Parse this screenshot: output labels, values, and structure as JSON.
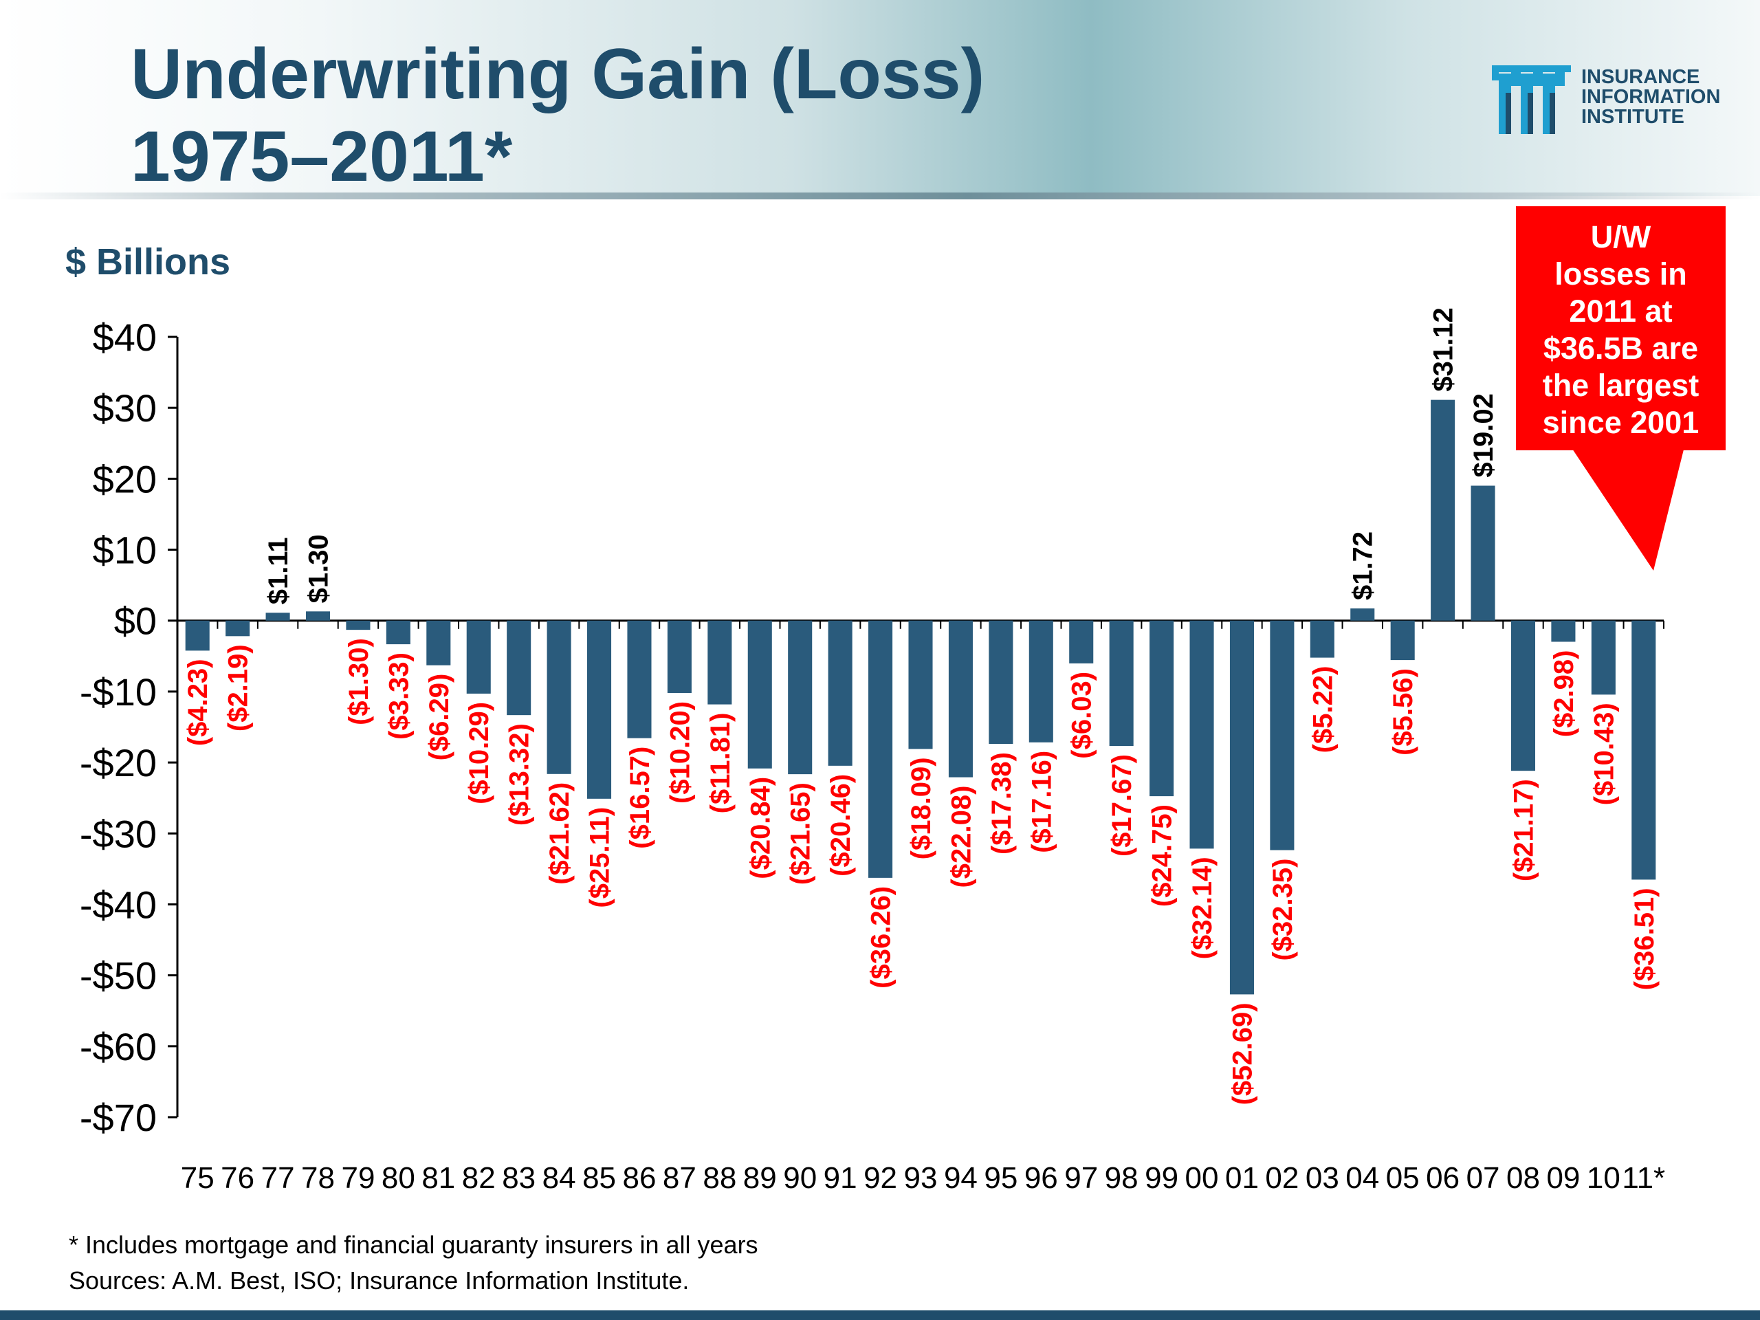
{
  "slide": {
    "title_line1": "Underwriting Gain (Loss)",
    "title_line2": "1975–2011*",
    "logo_lines": [
      "INSURANCE",
      "INFORMATION",
      "INSTITUTE"
    ],
    "unit_label": "$ Billions",
    "callout_lines": [
      "U/W",
      "losses in",
      "2011 at",
      "$36.5B are",
      "the largest",
      "since 2001"
    ],
    "footnote": "* Includes mortgage and financial guaranty insurers in all years",
    "sources": "Sources: A.M. Best, ISO; Insurance Information Institute."
  },
  "colors": {
    "bar": "#2a5b7c",
    "negative_label": "#ff0000",
    "positive_label": "#000000",
    "title": "#1f4d6b",
    "callout": "#ff0000"
  },
  "chart_data": {
    "type": "bar",
    "categories": [
      "75",
      "76",
      "77",
      "78",
      "79",
      "80",
      "81",
      "82",
      "83",
      "84",
      "85",
      "86",
      "87",
      "88",
      "89",
      "90",
      "91",
      "92",
      "93",
      "94",
      "95",
      "96",
      "97",
      "98",
      "99",
      "00",
      "01",
      "02",
      "03",
      "04",
      "05",
      "06",
      "07",
      "08",
      "09",
      "10",
      "11*"
    ],
    "values": [
      -4.23,
      -2.19,
      1.11,
      1.3,
      -1.3,
      -3.33,
      -6.29,
      -10.29,
      -13.32,
      -21.62,
      -25.11,
      -16.57,
      -10.2,
      -11.81,
      -20.84,
      -21.65,
      -20.46,
      -36.26,
      -18.09,
      -22.08,
      -17.38,
      -17.16,
      -6.03,
      -17.67,
      -24.75,
      -32.14,
      -52.69,
      -32.35,
      -5.22,
      1.72,
      -5.56,
      31.12,
      19.02,
      -21.17,
      -2.98,
      -10.43,
      -36.51
    ],
    "data_labels": [
      "($4.23)",
      "($2.19)",
      "$1.11",
      "$1.30",
      "($1.30)",
      "($3.33)",
      "($6.29)",
      "($10.29)",
      "($13.32)",
      "($21.62)",
      "($25.11)",
      "($16.57)",
      "($10.20)",
      "($11.81)",
      "($20.84)",
      "($21.65)",
      "($20.46)",
      "($36.26)",
      "($18.09)",
      "($22.08)",
      "($17.38)",
      "($17.16)",
      "($6.03)",
      "($17.67)",
      "($24.75)",
      "($32.14)",
      "($52.69)",
      "($32.35)",
      "($5.22)",
      "$1.72",
      "($5.56)",
      "$31.12",
      "$19.02",
      "($21.17)",
      "($2.98)",
      "($10.43)",
      "($36.51)"
    ],
    "title": "Underwriting Gain (Loss) 1975–2011*",
    "ylabel": "$ Billions",
    "ylim": [
      -70,
      40
    ],
    "yticks": [
      40,
      30,
      20,
      10,
      0,
      -10,
      -20,
      -30,
      -40,
      -50,
      -60,
      -70
    ],
    "ytick_labels": [
      "$40",
      "$30",
      "$20",
      "$10",
      "$0",
      "-$10",
      "-$20",
      "-$30",
      "-$40",
      "-$50",
      "-$60",
      "-$70"
    ],
    "grid": false,
    "legend": "none"
  }
}
